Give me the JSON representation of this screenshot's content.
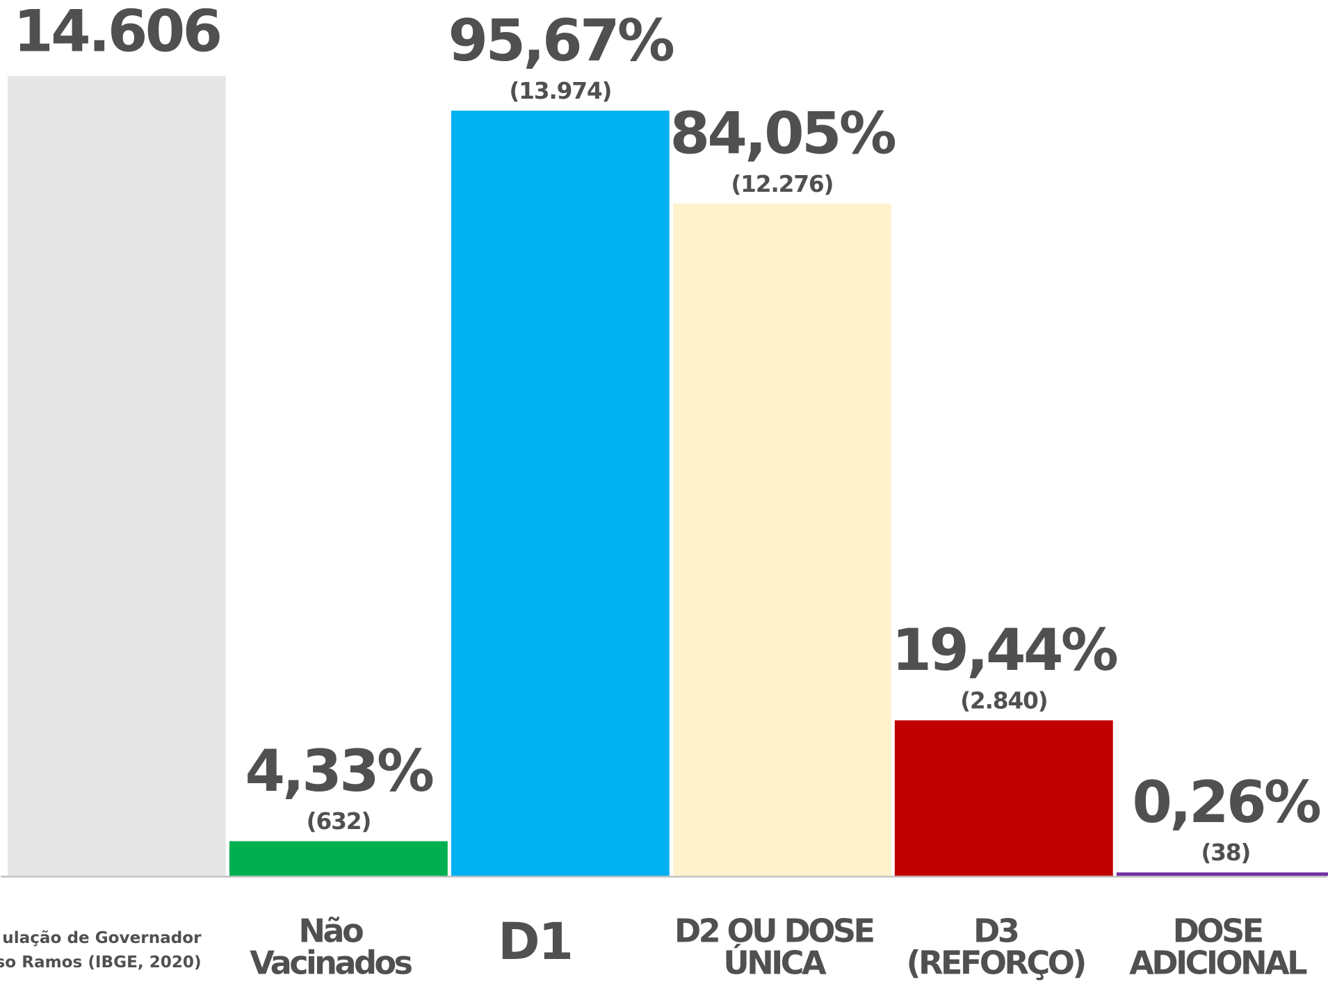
{
  "chart_data": {
    "type": "bar",
    "categories": [
      [
        "ulação de Governador",
        "so Ramos (IBGE, 2020)"
      ],
      [
        "Não",
        "Vacinados"
      ],
      [
        "D1"
      ],
      [
        "D2 OU DOSE",
        "ÚNICA"
      ],
      [
        "D3",
        "(REFORÇO)"
      ],
      [
        "DOSE",
        "ADICIONAL"
      ]
    ],
    "values": [
      14606,
      632,
      13974,
      12276,
      2840,
      38
    ],
    "value_labels": [
      "14.606",
      "(632)",
      "(13.974)",
      "(12.276)",
      "(2.840)",
      "(38)"
    ],
    "percentages": [
      null,
      4.33,
      95.67,
      84.05,
      19.44,
      0.26
    ],
    "percent_labels": [
      null,
      "4,33%",
      "95,67%",
      "84,05%",
      "19,44%",
      "0,26%"
    ],
    "colors": [
      "#e6e6e6",
      "#00b050",
      "#00b0f0",
      "#fff2cc",
      "#c00000",
      "#7030a0"
    ]
  }
}
